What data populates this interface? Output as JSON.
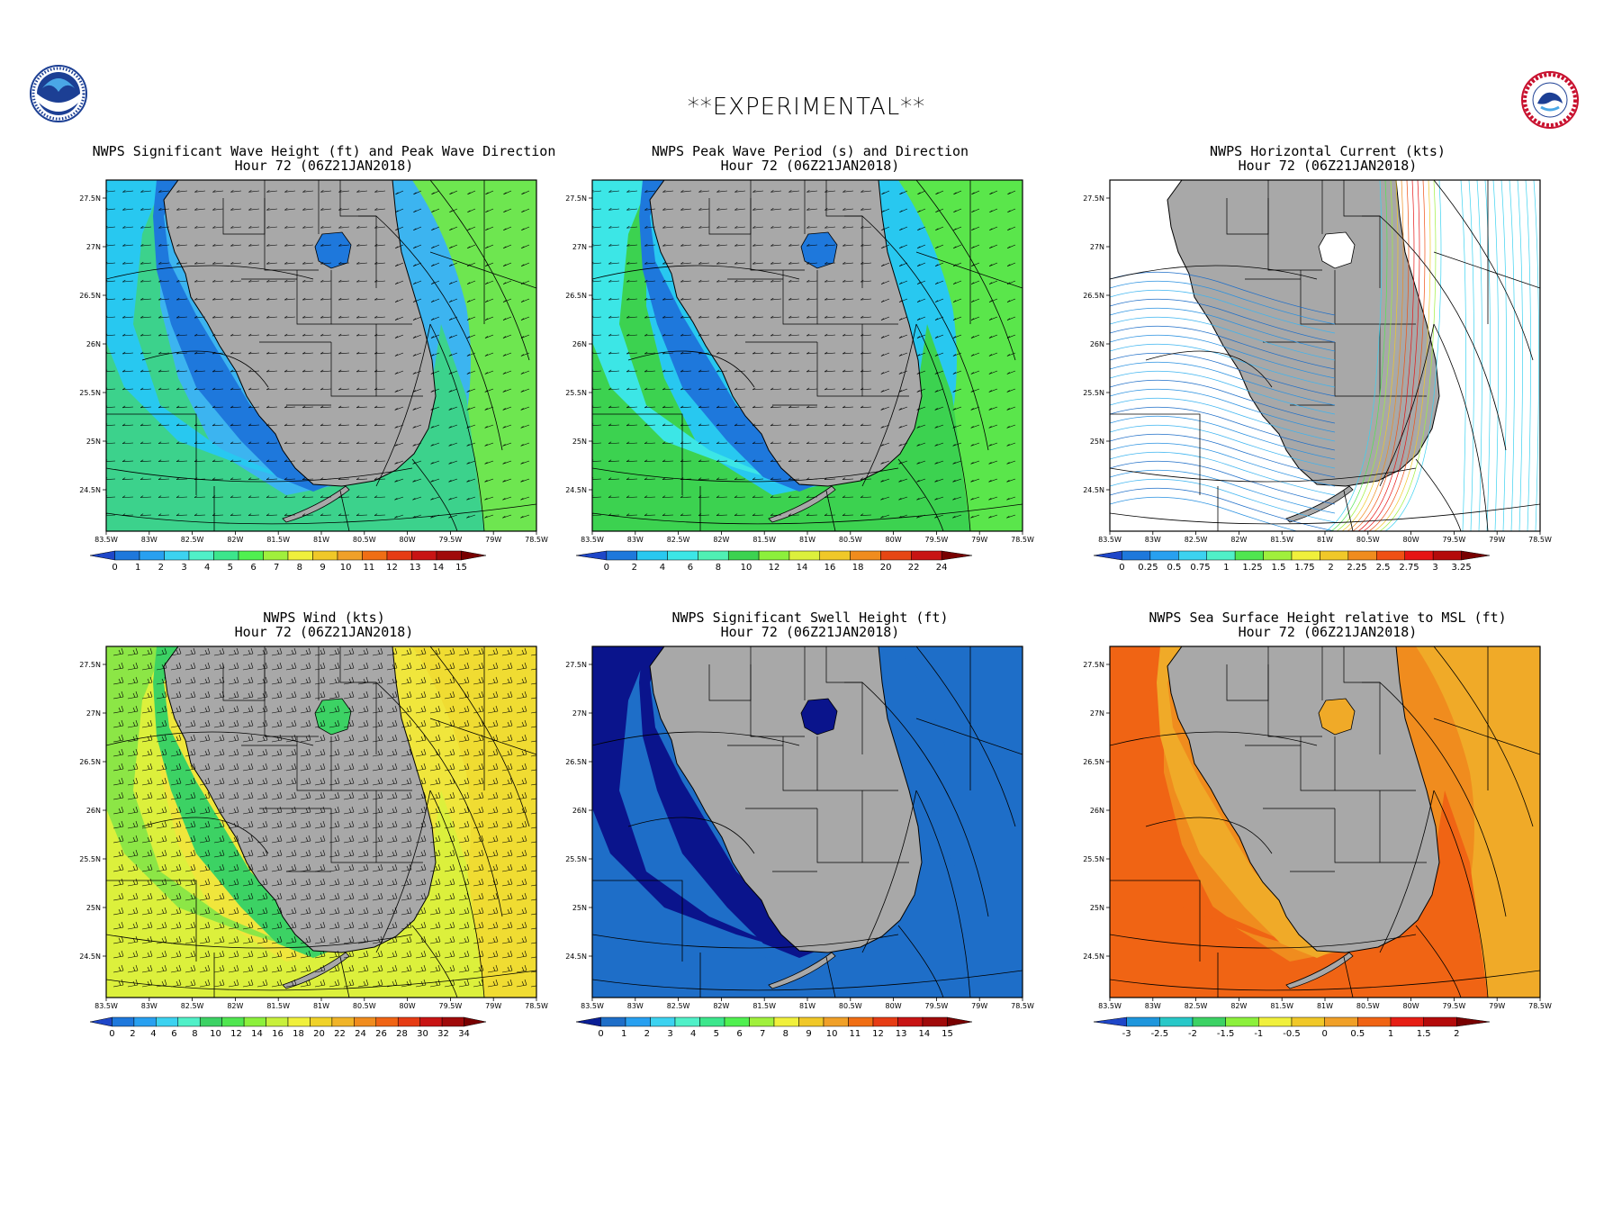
{
  "header": {
    "title": "**EXPERIMENTAL**",
    "left_logo_icon": "noaa-logo-icon",
    "right_logo_icon": "nws-logo-icon"
  },
  "time_label": "Hour 72 (06Z21JAN2018)",
  "axes": {
    "lat_ticks": [
      "27.5N",
      "27N",
      "26.5N",
      "26N",
      "25.5N",
      "25N",
      "24.5N"
    ],
    "lon_ticks": [
      "83.5W",
      "83W",
      "82.5W",
      "82W",
      "81.5W",
      "81W",
      "80.5W",
      "80W",
      "79.5W",
      "79W",
      "78.5W"
    ]
  },
  "panels": [
    {
      "id": "wave-height",
      "title": "NWPS Significant Wave Height (ft) and Peak Wave Direction",
      "subtitle": "Hour 72 (06Z21JAN2018)",
      "overlay": "arrows",
      "colorbar": {
        "labels": [
          "0",
          "1",
          "2",
          "3",
          "4",
          "5",
          "6",
          "7",
          "8",
          "9",
          "10",
          "11",
          "12",
          "13",
          "14",
          "15"
        ],
        "colors": [
          "#1e46c8",
          "#1e78dc",
          "#28a0f0",
          "#3cd2f0",
          "#50f0c8",
          "#3ce68c",
          "#50f050",
          "#a0f03c",
          "#f0f03c",
          "#f0c828",
          "#f0a028",
          "#f06e14",
          "#e63c14",
          "#c81414",
          "#a00a0a",
          "#780000"
        ]
      },
      "fields": {
        "land": "#a8a8a8",
        "near_shore": "#1e78dc",
        "shelf": "#28c8f0",
        "open": "#3cd28c",
        "gulfstream": "#6ee650",
        "deep": "#3cb4f0"
      }
    },
    {
      "id": "peak-period",
      "title": "NWPS Peak Wave Period (s) and Direction",
      "subtitle": "Hour 72 (06Z21JAN2018)",
      "overlay": "arrows",
      "colorbar": {
        "labels": [
          "0",
          "2",
          "4",
          "6",
          "8",
          "10",
          "12",
          "14",
          "16",
          "18",
          "20",
          "22",
          "24"
        ],
        "colors": [
          "#1e46c8",
          "#1e78dc",
          "#28c8f0",
          "#3ce6e6",
          "#50f0b4",
          "#3cd250",
          "#8cf03c",
          "#dcf03c",
          "#f0c828",
          "#f08c1e",
          "#e64614",
          "#c81414",
          "#780000"
        ]
      },
      "fields": {
        "land": "#a8a8a8",
        "near_shore": "#1e78dc",
        "shelf": "#3ce6e6",
        "open": "#3cd250",
        "gulfstream": "#5ae64b",
        "deep": "#28c8f0"
      }
    },
    {
      "id": "current",
      "title": "NWPS Horizontal Current (kts)",
      "subtitle": "Hour 72 (06Z21JAN2018)",
      "overlay": "streamlines",
      "colorbar": {
        "labels": [
          "0",
          "0.25",
          "0.5",
          "0.75",
          "1",
          "1.25",
          "1.5",
          "1.75",
          "2",
          "2.25",
          "2.5",
          "2.75",
          "3",
          "3.25"
        ],
        "colors": [
          "#1e46c8",
          "#1e78dc",
          "#28a0f0",
          "#3cd2f0",
          "#50f0c8",
          "#50e650",
          "#a0f03c",
          "#f0f03c",
          "#f0c828",
          "#f08c1e",
          "#f05014",
          "#e61414",
          "#b40a0a",
          "#780000"
        ]
      },
      "fields": {
        "land": "#a8a8a8",
        "near_shore": "#ffffff",
        "shelf": "#ffffff",
        "open": "#ffffff",
        "gulfstream": "#ffffff",
        "deep": "#ffffff"
      }
    },
    {
      "id": "wind",
      "title": "NWPS Wind (kts)",
      "subtitle": "Hour 72 (06Z21JAN2018)",
      "overlay": "barbs",
      "colorbar": {
        "labels": [
          "0",
          "2",
          "4",
          "6",
          "8",
          "10",
          "12",
          "14",
          "16",
          "18",
          "20",
          "22",
          "24",
          "26",
          "28",
          "30",
          "32",
          "34"
        ],
        "colors": [
          "#1e46c8",
          "#1e78dc",
          "#28a0f0",
          "#3cd2f0",
          "#50f0c8",
          "#3cd264",
          "#50e650",
          "#8cf03c",
          "#c8f03c",
          "#f0f03c",
          "#f0d228",
          "#f0b428",
          "#f08c1e",
          "#f06414",
          "#e63c14",
          "#c81414",
          "#a00a0a",
          "#780000"
        ]
      },
      "fields": {
        "land": "#a8a8a8",
        "near_shore": "#3cd264",
        "shelf": "#8ce646",
        "open": "#dcf03c",
        "gulfstream": "#f0dc32",
        "deep": "#f0e63c"
      }
    },
    {
      "id": "swell",
      "title": "NWPS Significant Swell Height (ft)",
      "subtitle": "Hour 72 (06Z21JAN2018)",
      "overlay": "none",
      "colorbar": {
        "labels": [
          "0",
          "1",
          "2",
          "3",
          "4",
          "5",
          "6",
          "7",
          "8",
          "9",
          "10",
          "11",
          "12",
          "13",
          "14",
          "15"
        ],
        "colors": [
          "#0a1e96",
          "#1e6ec8",
          "#28a0f0",
          "#3cd2f0",
          "#50f0c8",
          "#3ce68c",
          "#50f050",
          "#a0f03c",
          "#f0f03c",
          "#f0c828",
          "#f0a028",
          "#f06e14",
          "#e63c14",
          "#c81414",
          "#a00a0a",
          "#780000"
        ]
      },
      "fields": {
        "land": "#a8a8a8",
        "near_shore": "#0a148c",
        "shelf": "#0a148c",
        "open": "#1e6ec8",
        "gulfstream": "#1e6ec8",
        "deep": "#1e6ec8"
      }
    },
    {
      "id": "sea-surface",
      "title": "NWPS Sea Surface Height relative to MSL (ft)",
      "subtitle": "Hour 72 (06Z21JAN2018)",
      "overlay": "none",
      "colorbar": {
        "labels": [
          "-3",
          "-2.5",
          "-2",
          "-1.5",
          "-1",
          "-0.5",
          "0",
          "0.5",
          "1",
          "1.5",
          "2"
        ],
        "colors": [
          "#1e46c8",
          "#1e96dc",
          "#28c8c8",
          "#3cd264",
          "#8cf03c",
          "#f0f03c",
          "#f0c828",
          "#f0a028",
          "#f06414",
          "#e61e14",
          "#b40a0a",
          "#780000"
        ]
      },
      "fields": {
        "land": "#a8a8a8",
        "near_shore": "#f0aa28",
        "shelf": "#f06414",
        "open": "#f06414",
        "gulfstream": "#f0aa28",
        "deep": "#f08c1e"
      }
    }
  ]
}
